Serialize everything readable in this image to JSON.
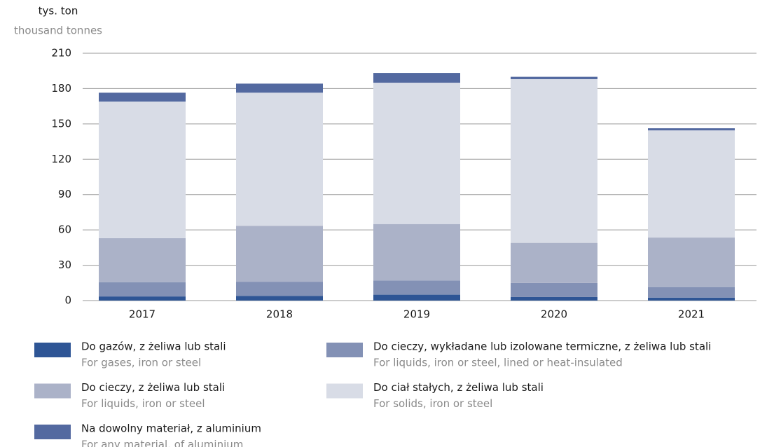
{
  "chart_data": {
    "type": "stacked_bar",
    "y_label": "tys. ton",
    "y_label_en": "thousand tonnes",
    "categories": [
      "2017",
      "2018",
      "2019",
      "2020",
      "2021"
    ],
    "series": [
      {
        "name": "Do gazów, z żeliwa lub stali",
        "name_en": "For gases, iron or steel",
        "color": "#2e5595",
        "values": [
          3.5,
          4,
          5,
          3,
          2.5
        ]
      },
      {
        "name": "Do cieczy, wykładane lub izolowane termiczne, z żeliwa lub stali",
        "name_en": "For liquids, iron or steel, lined or heat-insulated",
        "color": "#8391b5",
        "values": [
          12,
          12,
          12,
          12,
          9
        ]
      },
      {
        "name": "Do cieczy, z żeliwa lub stali",
        "name_en": "For liquids, iron or steel",
        "color": "#abb2c8",
        "values": [
          37.5,
          47.5,
          48,
          34,
          42
        ]
      },
      {
        "name": "Do ciał stałych, z żeliwa lub stali",
        "name_en": "For solids, iron or steel",
        "color": "#d8dce6",
        "values": [
          116,
          113,
          120,
          139,
          91
        ]
      },
      {
        "name": "Na dowolny materiał, z aluminium",
        "name_en": "For any material, of aluminium",
        "color": "#5369a0",
        "values": [
          7.5,
          7.7,
          8.3,
          2,
          1.8
        ]
      }
    ],
    "ylim": [
      0,
      210
    ],
    "yticks": [
      0,
      30,
      60,
      90,
      120,
      150,
      180,
      210
    ],
    "grid": true
  }
}
